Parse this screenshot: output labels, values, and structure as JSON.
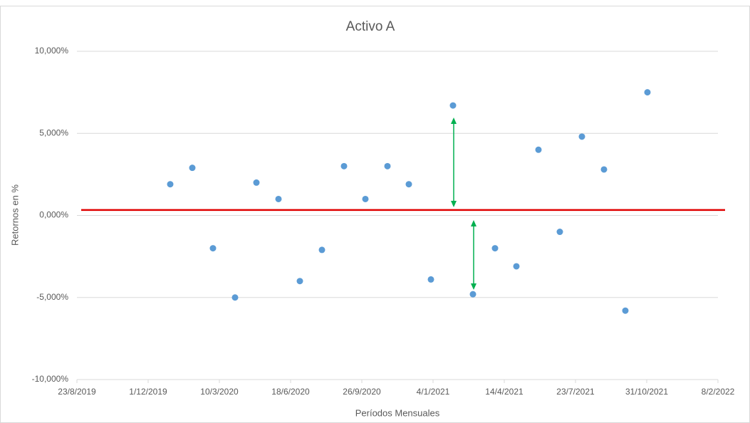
{
  "chart_data": {
    "type": "scatter",
    "title": "Activo A",
    "x_label": "Períodos Mensuales",
    "y_label": "Retornos en %",
    "series": [
      {
        "name": "Activo A",
        "color": "#5b9bd5",
        "x": [
          "2020-01-01",
          "2020-02-01",
          "2020-03-01",
          "2020-04-01",
          "2020-05-01",
          "2020-06-01",
          "2020-07-01",
          "2020-08-01",
          "2020-09-01",
          "2020-10-01",
          "2020-11-01",
          "2020-12-01",
          "2021-01-01",
          "2021-02-01",
          "2021-03-01",
          "2021-04-01",
          "2021-05-01",
          "2021-06-01",
          "2021-07-01",
          "2021-08-01",
          "2021-09-01",
          "2021-10-01",
          "2021-11-01"
        ],
        "values": [
          1.9,
          2.9,
          -2,
          -5,
          2,
          1,
          -4,
          -2.1,
          3,
          1,
          3,
          1.9,
          -3.9,
          6.7,
          -4.8,
          -2,
          -3.1,
          4,
          -1,
          4.8,
          2.8,
          -5.8,
          7.5
        ]
      }
    ],
    "reference_line": {
      "value": 0.33,
      "color": "#e00000"
    },
    "xlim": [
      "2019-08-23",
      "2022-02-08"
    ],
    "xticks": [
      {
        "value": "2019-08-23",
        "label": "23/8/2019"
      },
      {
        "value": "2019-12-01",
        "label": "1/12/2019"
      },
      {
        "value": "2020-03-10",
        "label": "10/3/2020"
      },
      {
        "value": "2020-06-18",
        "label": "18/6/2020"
      },
      {
        "value": "2020-09-26",
        "label": "26/9/2020"
      },
      {
        "value": "2021-01-04",
        "label": "4/1/2021"
      },
      {
        "value": "2021-04-14",
        "label": "14/4/2021"
      },
      {
        "value": "2021-07-23",
        "label": "23/7/2021"
      },
      {
        "value": "2021-10-31",
        "label": "31/10/2021"
      },
      {
        "value": "2022-02-08",
        "label": "8/2/2022"
      }
    ],
    "ylim": [
      -10,
      10
    ],
    "yticks": [
      {
        "value": -10,
        "label": "-10,000%"
      },
      {
        "value": -5,
        "label": "-5,000%"
      },
      {
        "value": 0,
        "label": "0,000%"
      },
      {
        "value": 5,
        "label": "5,000%"
      },
      {
        "value": 10,
        "label": "10,000%"
      }
    ],
    "grid": true
  }
}
